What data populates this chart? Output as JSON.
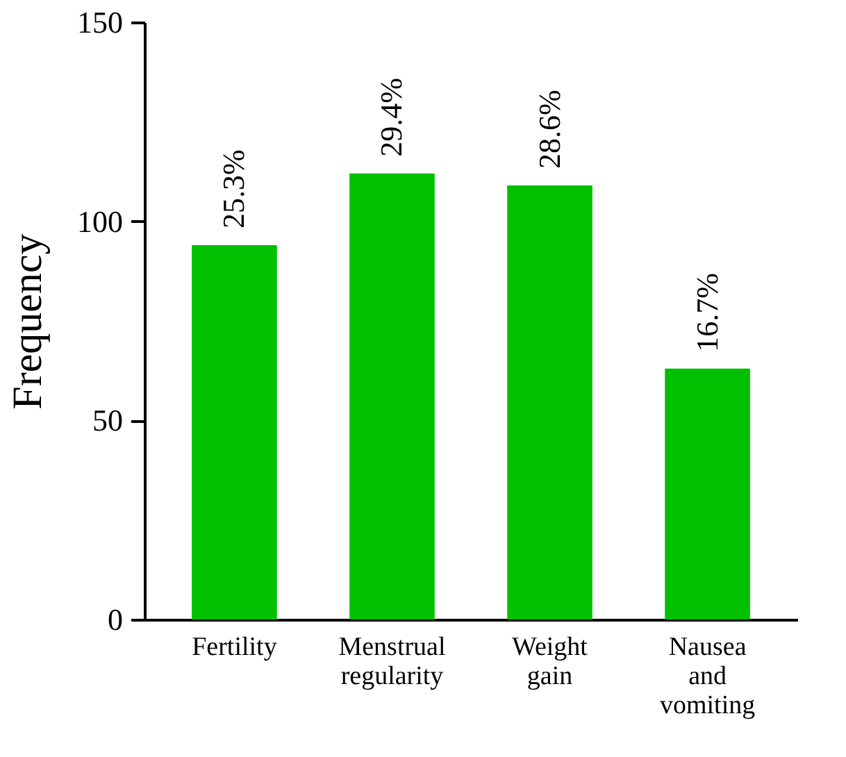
{
  "chart_data": {
    "type": "bar",
    "ylabel": "Frequency",
    "categories": [
      "Fertility",
      "Menstrual regularity",
      "Weight gain",
      "Nausea and vomiting"
    ],
    "values": [
      94,
      112,
      109,
      63
    ],
    "annotations": [
      {
        "text": "25.3%",
        "x": "Fertility",
        "y": 94
      },
      {
        "text": "29.4%",
        "x": "Menstrual regularity",
        "y": 112
      },
      {
        "text": "28.6%",
        "x": "Weight gain",
        "y": 109
      },
      {
        "text": "16.7%",
        "x": "Nausea and vomiting",
        "y": 63
      }
    ],
    "color": "#00c000",
    "ylim": [
      0,
      150
    ],
    "yticks": [
      0,
      50,
      100,
      150
    ],
    "grid": false
  }
}
